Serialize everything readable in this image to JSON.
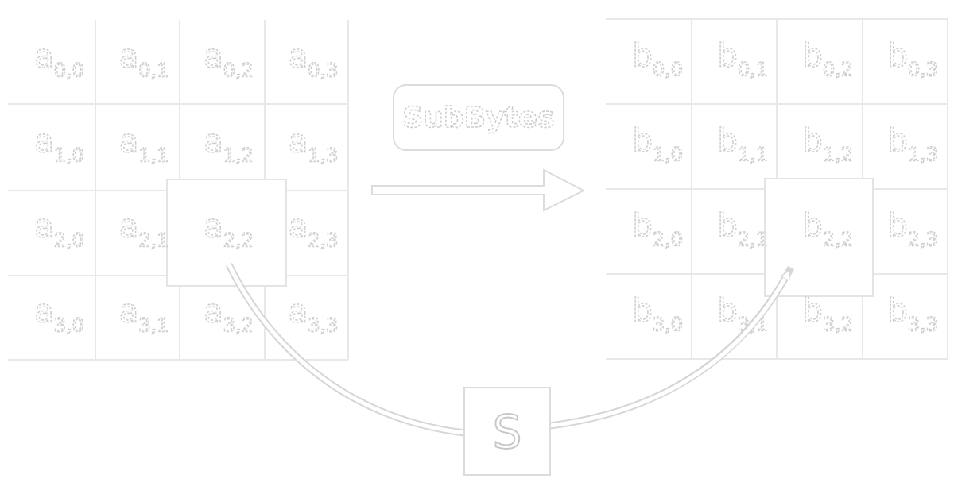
{
  "input_state": {
    "rows": [
      [
        {
          "letter": "a",
          "index": "0,0"
        },
        {
          "letter": "a",
          "index": "0,1"
        },
        {
          "letter": "a",
          "index": "0,2"
        },
        {
          "letter": "a",
          "index": "0,3"
        }
      ],
      [
        {
          "letter": "a",
          "index": "1,0"
        },
        {
          "letter": "a",
          "index": "1,1"
        },
        {
          "letter": "a",
          "index": "1,2"
        },
        {
          "letter": "a",
          "index": "1,3"
        }
      ],
      [
        {
          "letter": "a",
          "index": "2,0"
        },
        {
          "letter": "a",
          "index": "2,1"
        },
        {
          "letter": "a",
          "index": "2,2"
        },
        {
          "letter": "a",
          "index": "2,3"
        }
      ],
      [
        {
          "letter": "a",
          "index": "3,0"
        },
        {
          "letter": "a",
          "index": "3,1"
        },
        {
          "letter": "a",
          "index": "3,2"
        },
        {
          "letter": "a",
          "index": "3,3"
        }
      ]
    ],
    "highlighted": "2,2"
  },
  "output_state": {
    "rows": [
      [
        {
          "letter": "b",
          "index": "0,0"
        },
        {
          "letter": "b",
          "index": "0,1"
        },
        {
          "letter": "b",
          "index": "0,2"
        },
        {
          "letter": "b",
          "index": "0,3"
        }
      ],
      [
        {
          "letter": "b",
          "index": "1,0"
        },
        {
          "letter": "b",
          "index": "1,1"
        },
        {
          "letter": "b",
          "index": "1,2"
        },
        {
          "letter": "b",
          "index": "1,3"
        }
      ],
      [
        {
          "letter": "b",
          "index": "2,0"
        },
        {
          "letter": "b",
          "index": "2,1"
        },
        {
          "letter": "b",
          "index": "2,2"
        },
        {
          "letter": "b",
          "index": "2,3"
        }
      ],
      [
        {
          "letter": "b",
          "index": "3,0"
        },
        {
          "letter": "b",
          "index": "3,1"
        },
        {
          "letter": "b",
          "index": "3,2"
        },
        {
          "letter": "b",
          "index": "3,3"
        }
      ]
    ],
    "highlighted": "2,2"
  },
  "operation": {
    "label": "SubBytes"
  },
  "sbox": {
    "label": "S"
  }
}
